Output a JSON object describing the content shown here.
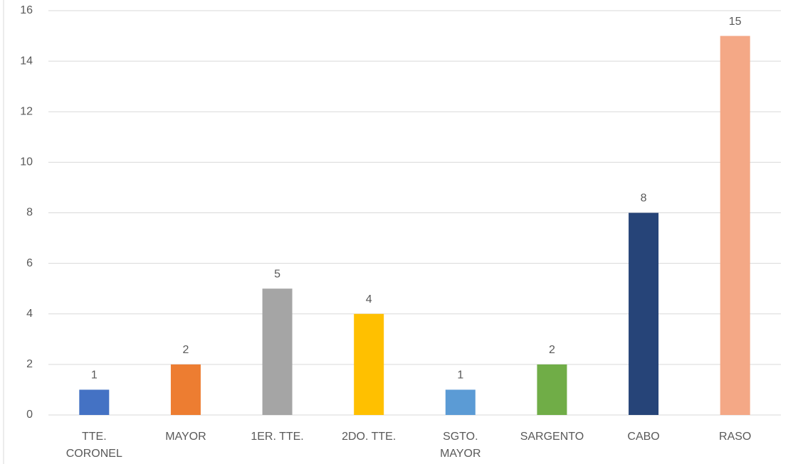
{
  "chart_data": {
    "type": "bar",
    "categories": [
      "TTE.\nCORONEL",
      "MAYOR",
      "1ER. TTE.",
      "2DO. TTE.",
      "SGTO.\nMAYOR",
      "SARGENTO",
      "CABO",
      "RASO"
    ],
    "values": [
      1,
      2,
      5,
      4,
      1,
      2,
      8,
      15
    ],
    "colors": [
      "#4472c4",
      "#ed7d31",
      "#a5a5a5",
      "#ffc000",
      "#5b9bd5",
      "#70ad47",
      "#264478",
      "#f4a886"
    ],
    "ylim": [
      0,
      16
    ],
    "yticks": [
      0,
      2,
      4,
      6,
      8,
      10,
      12,
      14,
      16
    ],
    "grid": true
  }
}
